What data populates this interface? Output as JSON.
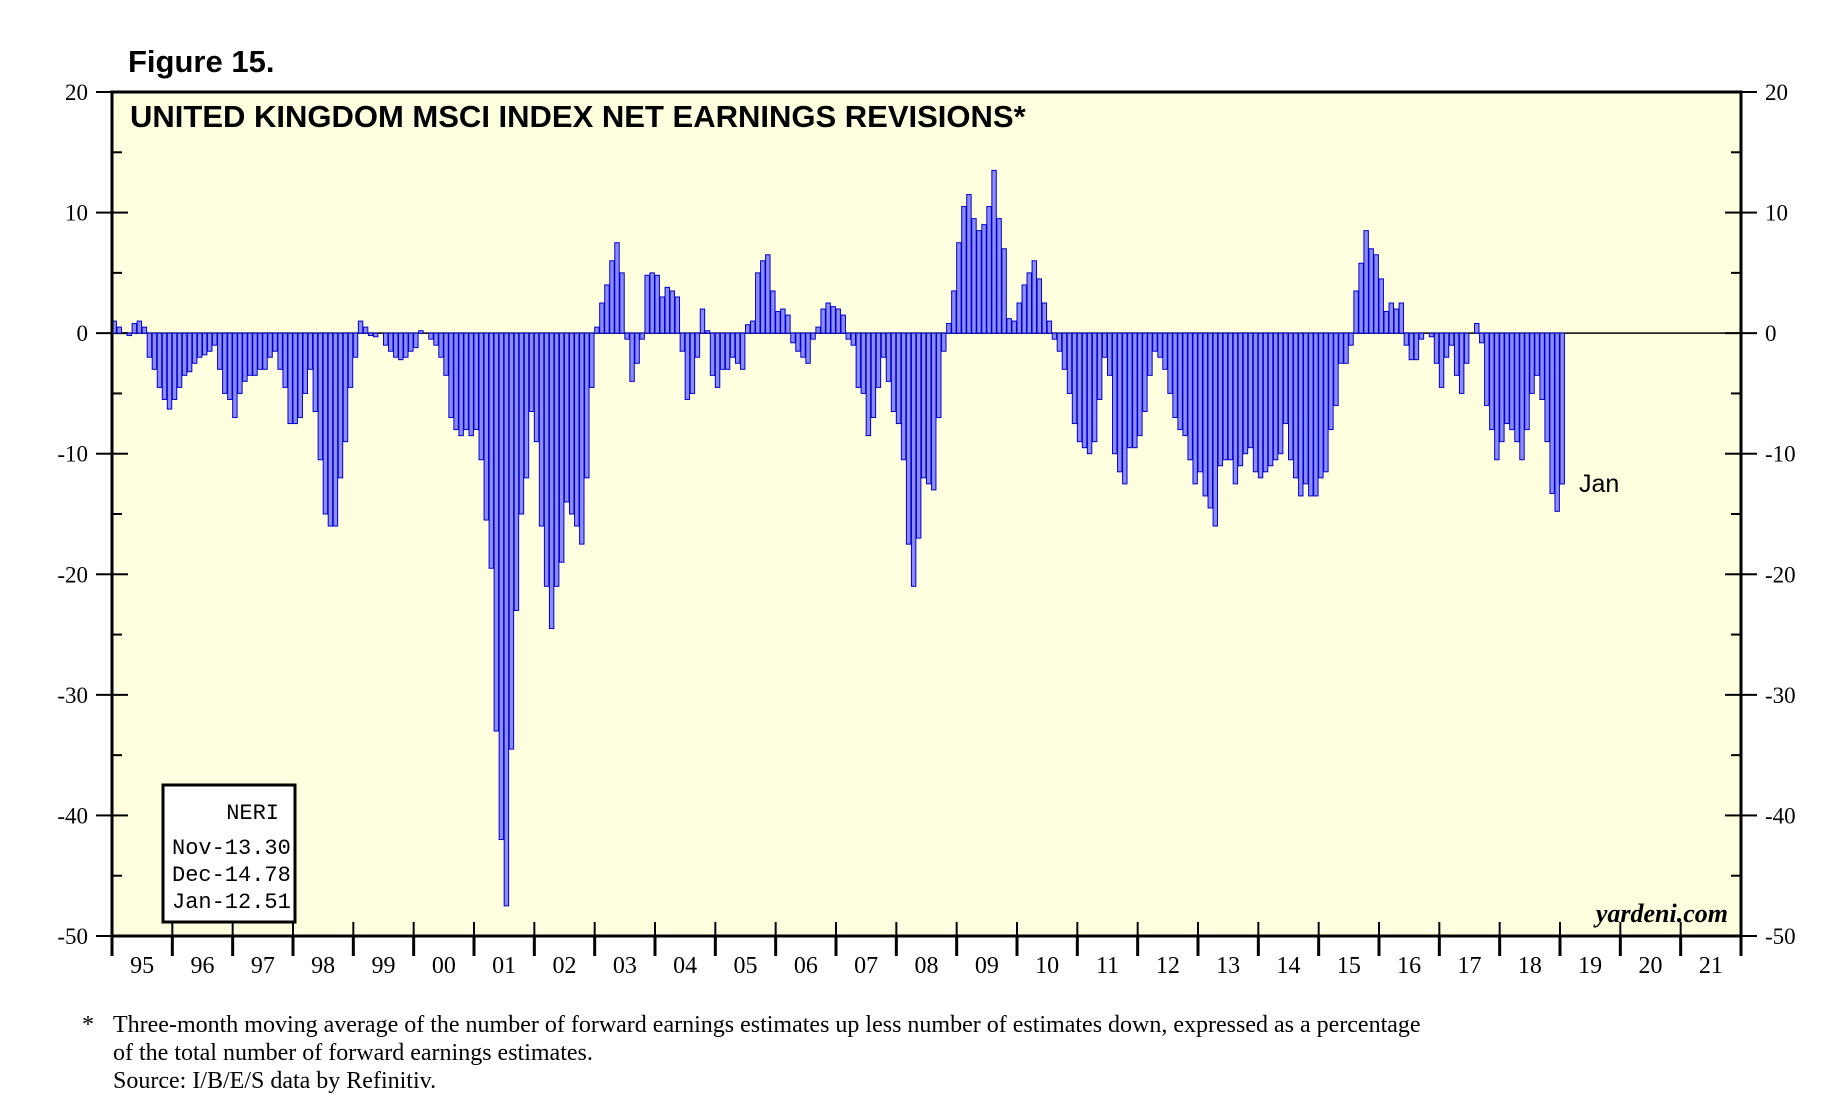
{
  "figure_label": "Figure 15.",
  "watermark": "yardeni.com",
  "legend": {
    "heading": "NERI",
    "lines": [
      "Nov-13.30",
      "Dec-14.78",
      "Jan-12.51"
    ]
  },
  "footnote": {
    "marker": "*",
    "line1": "Three-month moving average of the number of forward earnings estimates up less number of estimates down, expressed as a percentage",
    "line2": "of the total number of forward earnings estimates.",
    "source": "Source: I/B/E/S data by Refinitiv."
  },
  "colors": {
    "plot_background": "#FFFFE0",
    "bar_fill": "#8C8CFF",
    "bar_stroke": "#0000CC"
  },
  "chart_data": {
    "type": "bar",
    "title": "UNITED KINGDOM MSCI INDEX NET EARNINGS REVISIONS*",
    "series_name": "NERI",
    "ylim": [
      -50,
      20
    ],
    "y_ticks": [
      20,
      10,
      0,
      -10,
      -20,
      -30,
      -40,
      -50
    ],
    "x_ticks": [
      "95",
      "96",
      "97",
      "98",
      "99",
      "00",
      "01",
      "02",
      "03",
      "04",
      "05",
      "06",
      "07",
      "08",
      "09",
      "10",
      "11",
      "12",
      "13",
      "14",
      "15",
      "16",
      "17",
      "18",
      "19",
      "20",
      "21"
    ],
    "x_start": "1995-01",
    "x_end": "2021-12",
    "annotation": "Jan",
    "values": [
      1.0,
      0.5,
      0.0,
      -0.2,
      0.8,
      1.0,
      0.5,
      -2.0,
      -3.0,
      -4.5,
      -5.5,
      -6.3,
      -5.5,
      -4.5,
      -3.5,
      -3.2,
      -2.5,
      -2.0,
      -1.8,
      -1.5,
      -1.0,
      -3.0,
      -5.0,
      -5.5,
      -7.0,
      -5.0,
      -4.0,
      -3.5,
      -3.5,
      -3.0,
      -3.0,
      -2.0,
      -1.5,
      -3.0,
      -4.5,
      -7.5,
      -7.5,
      -7.0,
      -5.0,
      -3.0,
      -6.5,
      -10.5,
      -15.0,
      -16.0,
      -16.0,
      -12.0,
      -9.0,
      -4.5,
      -2.0,
      1.0,
      0.5,
      -0.2,
      -0.3,
      0.0,
      -1.0,
      -1.5,
      -2.0,
      -2.2,
      -2.0,
      -1.5,
      -1.2,
      0.2,
      0.0,
      -0.5,
      -1.0,
      -2.0,
      -3.5,
      -7.0,
      -8.0,
      -8.5,
      -8.0,
      -8.5,
      -8.0,
      -10.5,
      -15.5,
      -19.5,
      -33.0,
      -42.0,
      -47.5,
      -34.5,
      -23.0,
      -15.0,
      -12.0,
      -6.5,
      -9.0,
      -16.0,
      -21.0,
      -24.5,
      -21.0,
      -19.0,
      -14.0,
      -15.0,
      -16.0,
      -17.5,
      -12.0,
      -4.5,
      0.5,
      2.5,
      4.0,
      6.0,
      7.5,
      5.0,
      -0.5,
      -4.0,
      -2.5,
      -0.5,
      4.8,
      5.0,
      4.8,
      3.0,
      3.8,
      3.5,
      3.0,
      -1.5,
      -5.5,
      -5.0,
      -2.0,
      2.0,
      0.2,
      -3.5,
      -4.5,
      -3.0,
      -3.0,
      -2.0,
      -2.5,
      -3.0,
      0.7,
      1.0,
      5.0,
      6.0,
      6.5,
      3.5,
      1.8,
      2.0,
      1.5,
      -0.8,
      -1.5,
      -2.0,
      -2.5,
      -0.5,
      0.5,
      2.0,
      2.5,
      2.2,
      2.0,
      1.5,
      -0.5,
      -1.0,
      -4.5,
      -5.0,
      -8.5,
      -7.0,
      -4.5,
      -2.0,
      -4.0,
      -6.5,
      -7.5,
      -10.5,
      -17.5,
      -21.0,
      -17.0,
      -12.0,
      -12.5,
      -13.0,
      -7.0,
      -1.5,
      0.8,
      3.5,
      7.5,
      10.5,
      11.5,
      9.5,
      8.5,
      9.0,
      10.5,
      13.5,
      9.5,
      7.0,
      1.2,
      1.0,
      2.5,
      4.0,
      5.0,
      6.0,
      4.5,
      2.5,
      1.0,
      -0.5,
      -1.5,
      -3.0,
      -5.0,
      -7.5,
      -9.0,
      -9.5,
      -10.0,
      -9.0,
      -5.5,
      -2.0,
      -3.5,
      -10.0,
      -11.5,
      -12.5,
      -9.5,
      -9.5,
      -8.5,
      -6.5,
      -3.5,
      -1.5,
      -2.0,
      -3.0,
      -5.0,
      -7.0,
      -8.0,
      -8.5,
      -10.5,
      -12.5,
      -11.5,
      -13.5,
      -14.5,
      -16.0,
      -11.0,
      -10.5,
      -10.5,
      -12.5,
      -11.0,
      -10.0,
      -9.5,
      -11.5,
      -12.0,
      -11.5,
      -11.0,
      -10.5,
      -10.0,
      -7.5,
      -10.5,
      -12.0,
      -13.5,
      -12.5,
      -13.5,
      -13.5,
      -12.0,
      -11.5,
      -8.0,
      -6.0,
      -2.5,
      -2.5,
      -1.0,
      3.5,
      5.8,
      8.5,
      7.0,
      6.5,
      4.5,
      1.8,
      2.5,
      2.0,
      2.5,
      -1.0,
      -2.2,
      -2.2,
      -0.5,
      0.0,
      -0.3,
      -2.5,
      -4.5,
      -2.0,
      -1.0,
      -3.5,
      -5.0,
      -2.5,
      0.0,
      0.8,
      -0.8,
      -6.0,
      -8.0,
      -10.5,
      -9.0,
      -7.5,
      -8.0,
      -9.0,
      -10.5,
      -8.0,
      -5.0,
      -3.5,
      -5.5,
      -9.0,
      -13.3,
      -14.78,
      -12.51
    ]
  }
}
